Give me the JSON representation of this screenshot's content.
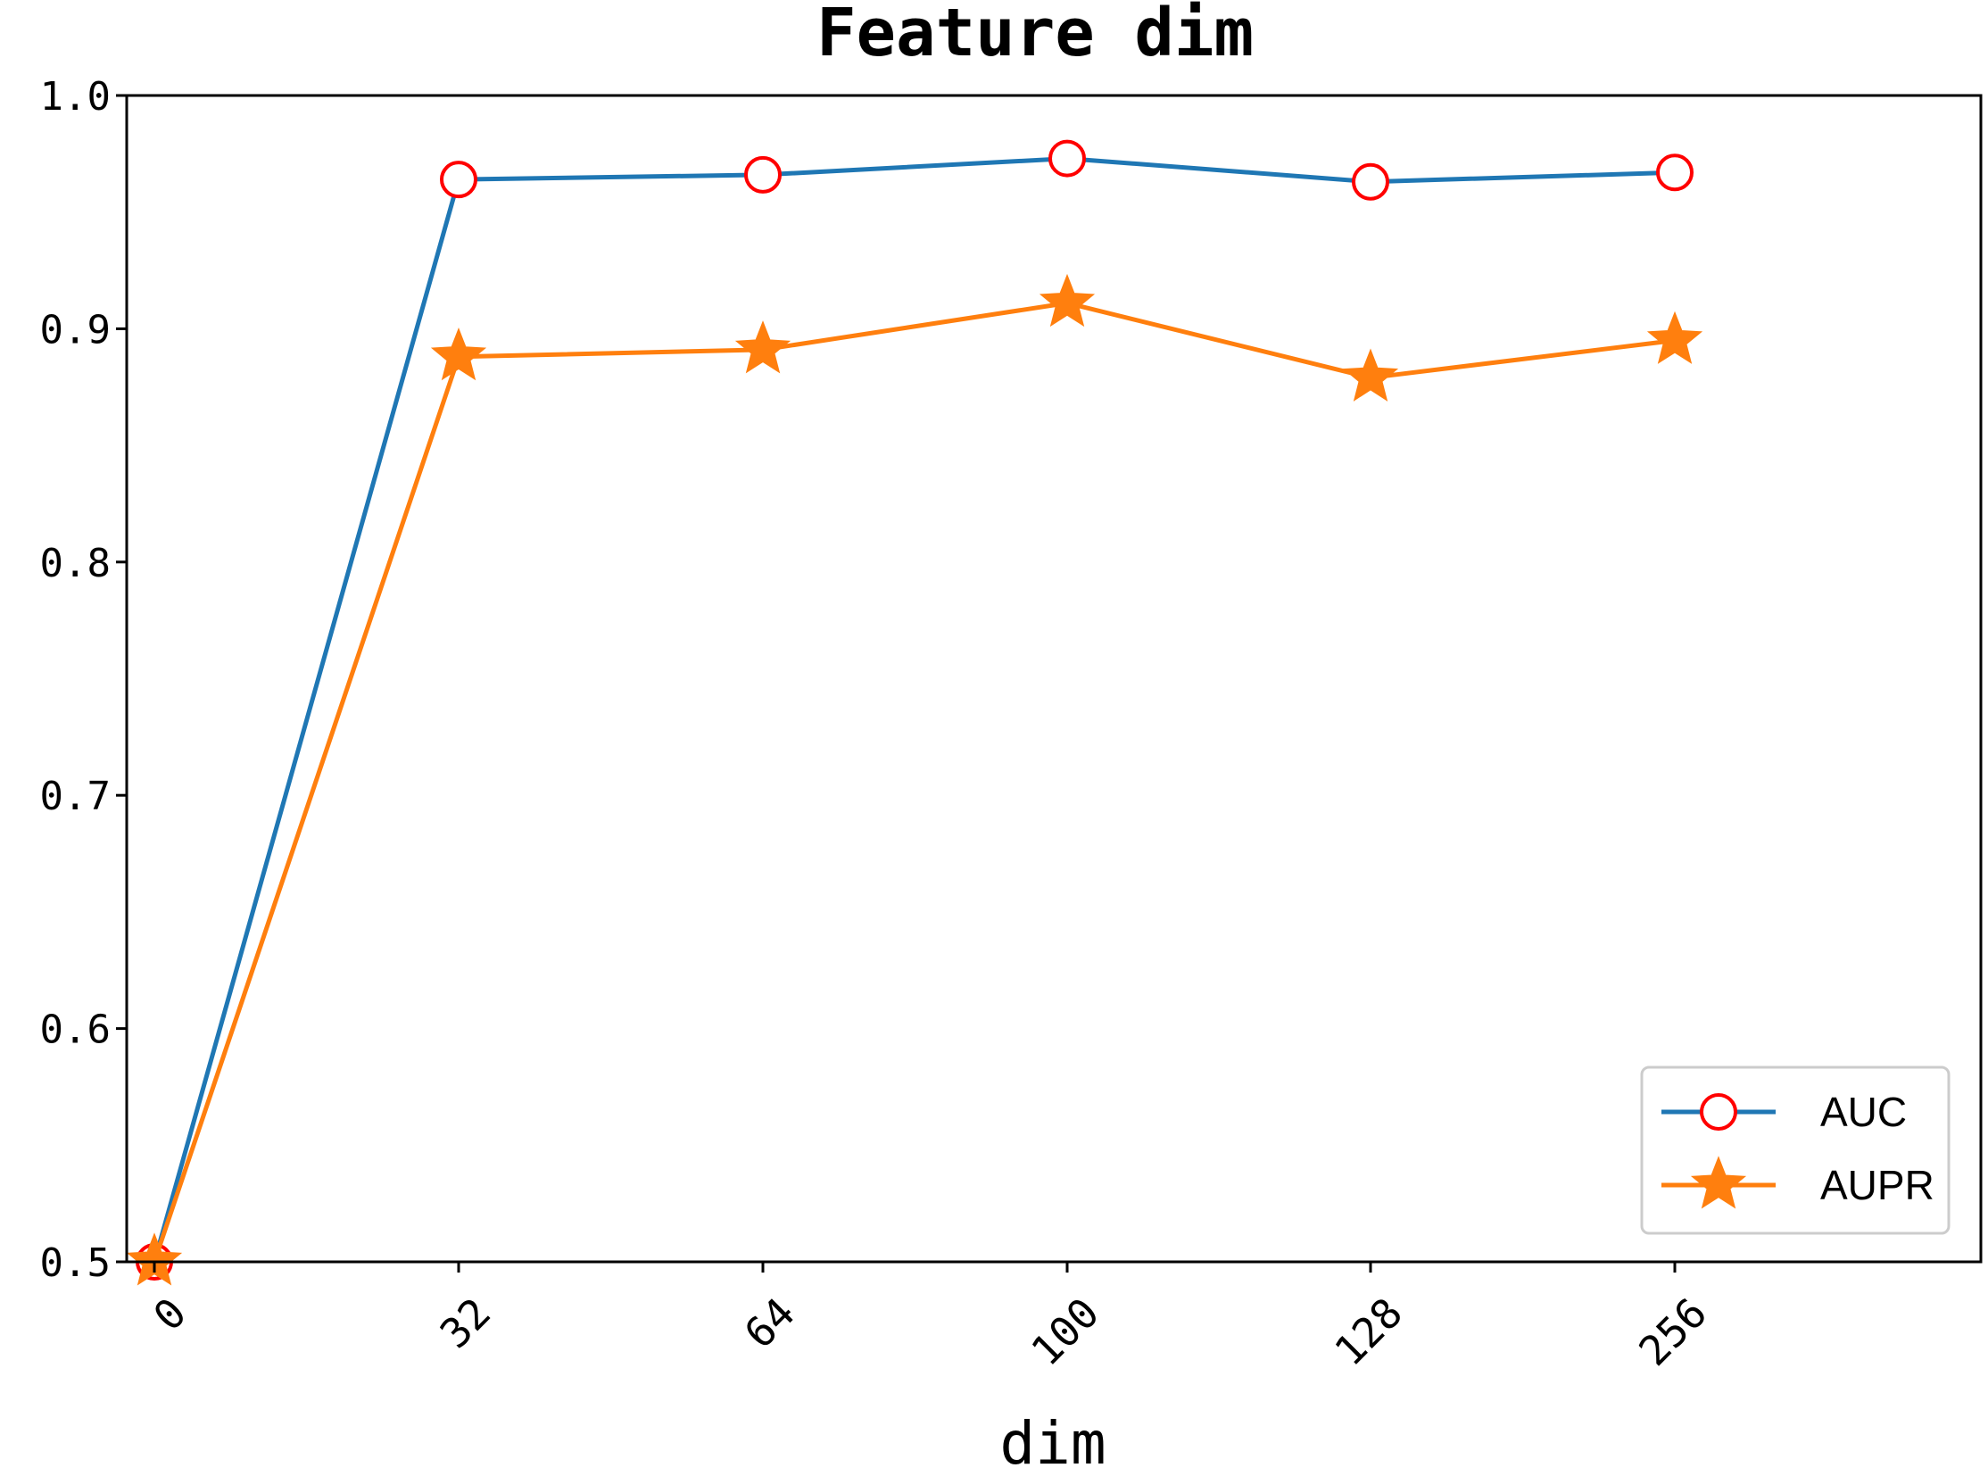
{
  "chart_data": {
    "type": "line",
    "title": "Feature dim",
    "xlabel": "dim",
    "ylabel": "",
    "categories": [
      "0",
      "32",
      "64",
      "100",
      "128",
      "256"
    ],
    "ylim": [
      0.5,
      1.0
    ],
    "yticks": [
      "0.5",
      "0.6",
      "0.7",
      "0.8",
      "0.9",
      "1.0"
    ],
    "grid": false,
    "legend_position": "lower-right",
    "series": [
      {
        "name": "AUC",
        "values": [
          0.5,
          0.964,
          0.966,
          0.973,
          0.963,
          0.967
        ],
        "color": "#1f77b4",
        "marker": "circle",
        "marker_edge_color": "#ff0000"
      },
      {
        "name": "AUPR",
        "values": [
          0.5,
          0.888,
          0.891,
          0.911,
          0.879,
          0.895
        ],
        "color": "#ff7f0e",
        "marker": "star"
      }
    ]
  }
}
